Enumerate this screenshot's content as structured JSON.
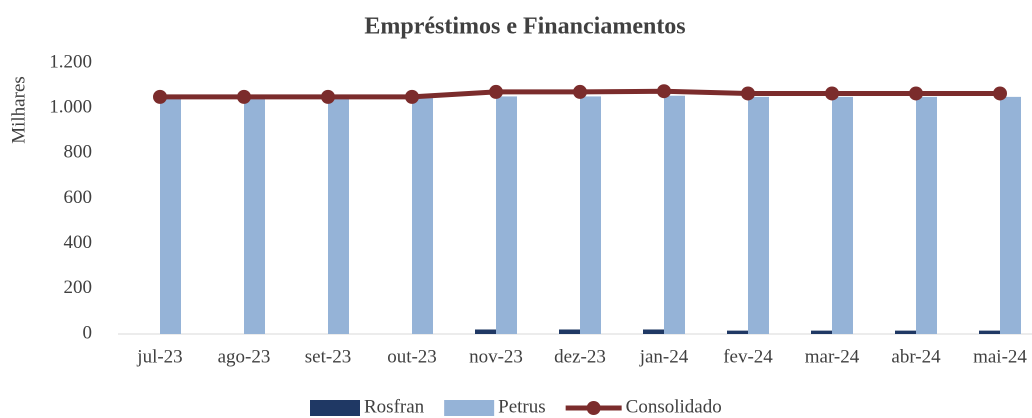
{
  "chart_data": {
    "type": "bar-line",
    "title": "Empréstimos e Financiamentos",
    "y_label": "Milhares",
    "categories": [
      "jul-23",
      "ago-23",
      "set-23",
      "out-23",
      "nov-23",
      "dez-23",
      "jan-24",
      "fev-24",
      "mar-24",
      "abr-24",
      "mai-24"
    ],
    "series": [
      {
        "name": "Rosfran",
        "type": "bar",
        "color": "#1f3864",
        "values": [
          0,
          0,
          0,
          0,
          20,
          20,
          20,
          15,
          15,
          15,
          15
        ]
      },
      {
        "name": "Petrus",
        "type": "bar",
        "color": "#95b3d7",
        "values": [
          1050,
          1050,
          1050,
          1050,
          1052,
          1052,
          1055,
          1050,
          1050,
          1050,
          1050
        ]
      },
      {
        "name": "Consolidado",
        "type": "line",
        "color": "#7b2c2c",
        "values": [
          1050,
          1050,
          1050,
          1050,
          1072,
          1072,
          1075,
          1065,
          1065,
          1065,
          1065
        ]
      }
    ],
    "ylim": [
      0,
      1200
    ],
    "yticks": [
      0,
      200,
      400,
      600,
      800,
      {
        "value": 1000,
        "label": "1.000"
      },
      {
        "value": 1200,
        "label": "1.200"
      }
    ],
    "legend": "bottom"
  }
}
